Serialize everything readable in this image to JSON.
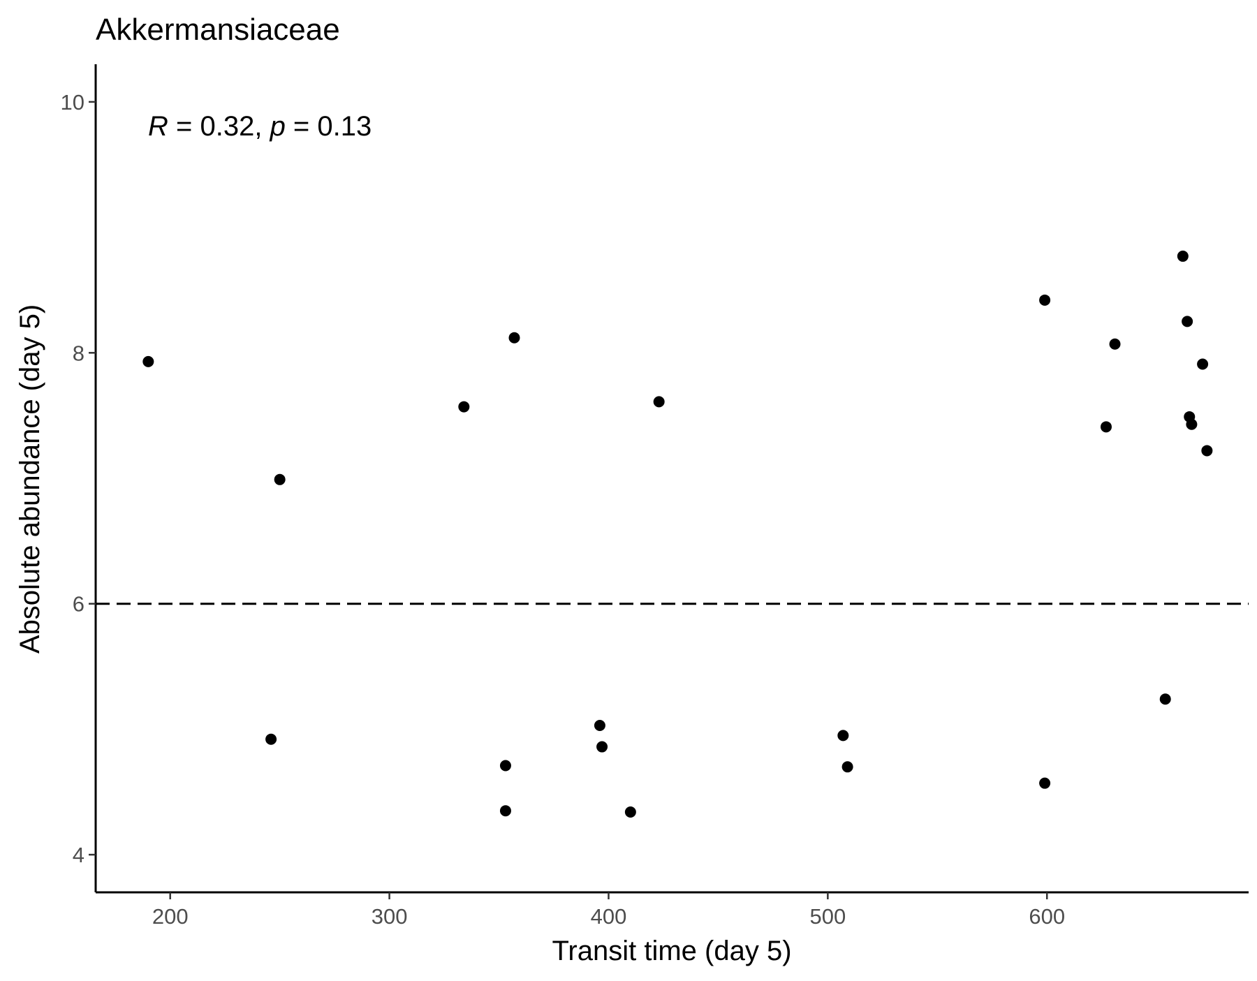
{
  "chart_data": {
    "type": "scatter",
    "title": "Akkermansiaceae",
    "xlabel": "Transit time (day 5)",
    "ylabel": "Absolute abundance (day 5)",
    "xlim": [
      166,
      692
    ],
    "ylim": [
      3.7,
      10.3
    ],
    "x_ticks": [
      200,
      300,
      400,
      500,
      600
    ],
    "y_ticks": [
      4,
      6,
      8,
      10
    ],
    "x_tick_labels": [
      "200",
      "300",
      "400",
      "500",
      "600"
    ],
    "y_tick_labels": [
      "4",
      "6",
      "8",
      "10"
    ],
    "reference_line": {
      "y": 6,
      "style": "dashed"
    },
    "annotation": {
      "r_symbol": "R",
      "r_text": " = 0.32, ",
      "p_symbol": "p",
      "p_text": " = 0.13"
    },
    "point_color": "#000000",
    "grid": false,
    "points": [
      {
        "x": 190,
        "y": 7.93
      },
      {
        "x": 250,
        "y": 6.99
      },
      {
        "x": 246,
        "y": 4.92
      },
      {
        "x": 334,
        "y": 7.57
      },
      {
        "x": 357,
        "y": 8.12
      },
      {
        "x": 353,
        "y": 4.71
      },
      {
        "x": 353,
        "y": 4.35
      },
      {
        "x": 396,
        "y": 5.03
      },
      {
        "x": 397,
        "y": 4.86
      },
      {
        "x": 410,
        "y": 4.34
      },
      {
        "x": 423,
        "y": 7.61
      },
      {
        "x": 507,
        "y": 4.95
      },
      {
        "x": 509,
        "y": 4.7
      },
      {
        "x": 599,
        "y": 8.42
      },
      {
        "x": 599,
        "y": 4.57
      },
      {
        "x": 627,
        "y": 7.41
      },
      {
        "x": 631,
        "y": 8.07
      },
      {
        "x": 654,
        "y": 5.24
      },
      {
        "x": 662,
        "y": 8.77
      },
      {
        "x": 664,
        "y": 8.25
      },
      {
        "x": 665,
        "y": 7.49
      },
      {
        "x": 666,
        "y": 7.43
      },
      {
        "x": 671,
        "y": 7.91
      },
      {
        "x": 673,
        "y": 7.22
      }
    ]
  }
}
